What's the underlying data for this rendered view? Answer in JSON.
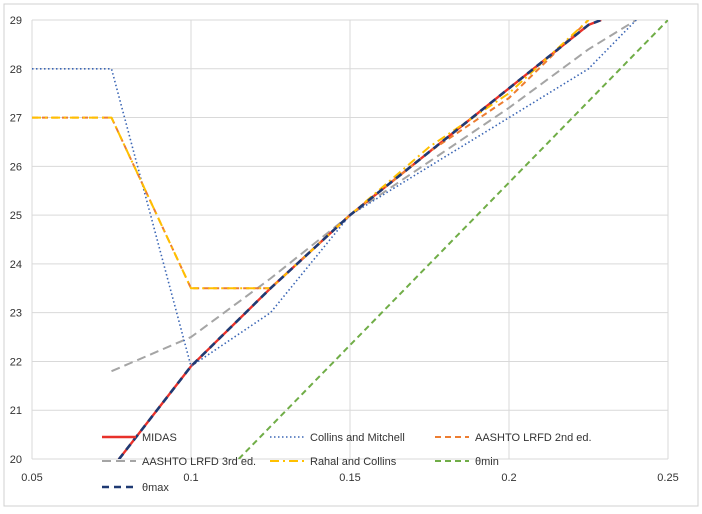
{
  "chart_data": {
    "type": "line",
    "xlim": [
      0.05,
      0.25
    ],
    "ylim": [
      20,
      29
    ],
    "x_ticks": [
      "0.05",
      "0.1",
      "0.15",
      "0.2",
      "0.25"
    ],
    "y_ticks": [
      "20",
      "21",
      "22",
      "23",
      "24",
      "25",
      "26",
      "27",
      "28",
      "29"
    ],
    "grid": true,
    "legend_position": "bottom-inside",
    "series": [
      {
        "name": "MIDAS",
        "color": "#e8312a",
        "dash": "solid",
        "points": [
          [
            0.075,
            19.8
          ],
          [
            0.1,
            21.9
          ],
          [
            0.125,
            23.5
          ],
          [
            0.15,
            25.0
          ],
          [
            0.175,
            26.3
          ],
          [
            0.2,
            27.6
          ],
          [
            0.225,
            28.9
          ],
          [
            0.229,
            29.0
          ]
        ]
      },
      {
        "name": "Collins and Mitchell",
        "color": "#3b66b5",
        "dash": "dotted",
        "points": [
          [
            0.05,
            28.0
          ],
          [
            0.075,
            28.0
          ],
          [
            0.1,
            21.9
          ],
          [
            0.125,
            23.0
          ],
          [
            0.15,
            25.0
          ],
          [
            0.175,
            26.0
          ],
          [
            0.2,
            27.0
          ],
          [
            0.225,
            28.0
          ],
          [
            0.24,
            29.0
          ]
        ]
      },
      {
        "name": "AASHTO LRFD 2nd  ed.",
        "color": "#ed7d31",
        "dash": "dashed",
        "points": [
          [
            0.05,
            27.0
          ],
          [
            0.075,
            27.0
          ],
          [
            0.1,
            23.5
          ],
          [
            0.125,
            23.5
          ],
          [
            0.15,
            25.0
          ],
          [
            0.175,
            26.3
          ],
          [
            0.2,
            27.4
          ],
          [
            0.225,
            29.0
          ]
        ]
      },
      {
        "name": "AASHTO LRFD 3rd  ed.",
        "color": "#a5a5a5",
        "dash": "longdash",
        "points": [
          [
            0.075,
            21.8
          ],
          [
            0.1,
            22.5
          ],
          [
            0.125,
            23.7
          ],
          [
            0.15,
            25.0
          ],
          [
            0.175,
            26.1
          ],
          [
            0.2,
            27.2
          ],
          [
            0.225,
            28.4
          ],
          [
            0.24,
            29.0
          ]
        ]
      },
      {
        "name": "Rahal and Collins",
        "color": "#ffc000",
        "dash": "dashdot",
        "points": [
          [
            0.05,
            27.0
          ],
          [
            0.075,
            27.0
          ],
          [
            0.1,
            23.5
          ],
          [
            0.125,
            23.5
          ],
          [
            0.15,
            25.0
          ],
          [
            0.175,
            26.4
          ],
          [
            0.2,
            27.5
          ],
          [
            0.225,
            29.0
          ]
        ]
      },
      {
        "name": "θmin",
        "color": "#70ad47",
        "dash": "dashed",
        "points": [
          [
            0.115,
            20.0
          ],
          [
            0.25,
            29.0
          ]
        ]
      },
      {
        "name": "θmax",
        "color": "#1f3a73",
        "dash": "bolddash",
        "points": [
          [
            0.075,
            19.8
          ],
          [
            0.1,
            21.9
          ],
          [
            0.125,
            23.5
          ],
          [
            0.15,
            25.0
          ],
          [
            0.175,
            26.3
          ],
          [
            0.2,
            27.6
          ],
          [
            0.225,
            28.9
          ],
          [
            0.229,
            29.0
          ]
        ]
      }
    ]
  }
}
